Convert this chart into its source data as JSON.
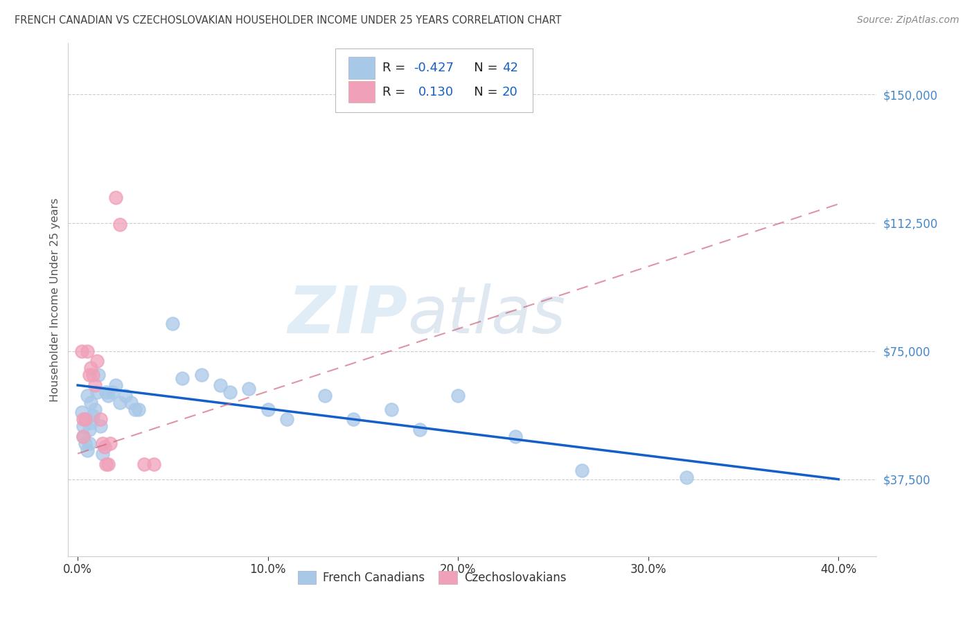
{
  "title": "FRENCH CANADIAN VS CZECHOSLOVAKIAN HOUSEHOLDER INCOME UNDER 25 YEARS CORRELATION CHART",
  "source": "Source: ZipAtlas.com",
  "ylabel": "Householder Income Under 25 years",
  "xlabel_ticks": [
    "0.0%",
    "10.0%",
    "20.0%",
    "30.0%",
    "40.0%"
  ],
  "xlabel_tick_vals": [
    0.0,
    0.1,
    0.2,
    0.3,
    0.4
  ],
  "ytick_labels": [
    "$37,500",
    "$75,000",
    "$112,500",
    "$150,000"
  ],
  "ytick_vals": [
    37500,
    75000,
    112500,
    150000
  ],
  "xlim": [
    -0.005,
    0.42
  ],
  "ylim": [
    15000,
    165000
  ],
  "watermark_zip": "ZIP",
  "watermark_atlas": "atlas",
  "french_color": "#a8c8e8",
  "czech_color": "#f0a0b8",
  "french_line_color": "#1460c8",
  "czech_line_color": "#d06880",
  "axis_label_color": "#4488cc",
  "title_color": "#404040",
  "source_color": "#888888",
  "french_canadians": [
    [
      0.002,
      57000
    ],
    [
      0.003,
      53000
    ],
    [
      0.003,
      50000
    ],
    [
      0.004,
      55000
    ],
    [
      0.004,
      48000
    ],
    [
      0.005,
      62000
    ],
    [
      0.005,
      46000
    ],
    [
      0.006,
      52000
    ],
    [
      0.006,
      48000
    ],
    [
      0.007,
      60000
    ],
    [
      0.007,
      54000
    ],
    [
      0.008,
      56000
    ],
    [
      0.009,
      58000
    ],
    [
      0.01,
      63000
    ],
    [
      0.011,
      68000
    ],
    [
      0.012,
      53000
    ],
    [
      0.013,
      45000
    ],
    [
      0.015,
      63000
    ],
    [
      0.016,
      62000
    ],
    [
      0.018,
      63000
    ],
    [
      0.02,
      65000
    ],
    [
      0.022,
      60000
    ],
    [
      0.025,
      62000
    ],
    [
      0.028,
      60000
    ],
    [
      0.03,
      58000
    ],
    [
      0.032,
      58000
    ],
    [
      0.05,
      83000
    ],
    [
      0.055,
      67000
    ],
    [
      0.065,
      68000
    ],
    [
      0.075,
      65000
    ],
    [
      0.08,
      63000
    ],
    [
      0.09,
      64000
    ],
    [
      0.1,
      58000
    ],
    [
      0.11,
      55000
    ],
    [
      0.13,
      62000
    ],
    [
      0.145,
      55000
    ],
    [
      0.165,
      58000
    ],
    [
      0.18,
      52000
    ],
    [
      0.2,
      62000
    ],
    [
      0.23,
      50000
    ],
    [
      0.265,
      40000
    ],
    [
      0.32,
      38000
    ]
  ],
  "czechoslovakians": [
    [
      0.002,
      75000
    ],
    [
      0.003,
      55000
    ],
    [
      0.003,
      50000
    ],
    [
      0.004,
      55000
    ],
    [
      0.005,
      75000
    ],
    [
      0.006,
      68000
    ],
    [
      0.007,
      70000
    ],
    [
      0.008,
      68000
    ],
    [
      0.009,
      65000
    ],
    [
      0.01,
      72000
    ],
    [
      0.012,
      55000
    ],
    [
      0.013,
      48000
    ],
    [
      0.014,
      47000
    ],
    [
      0.015,
      42000
    ],
    [
      0.016,
      42000
    ],
    [
      0.017,
      48000
    ],
    [
      0.02,
      120000
    ],
    [
      0.022,
      112000
    ],
    [
      0.035,
      42000
    ],
    [
      0.04,
      42000
    ]
  ],
  "fr_line_x0": 0.0,
  "fr_line_y0": 65000,
  "fr_line_x1": 0.4,
  "fr_line_y1": 37500,
  "cz_line_x0": 0.0,
  "cz_line_y0": 45000,
  "cz_line_x1": 0.4,
  "cz_line_y1": 118000
}
